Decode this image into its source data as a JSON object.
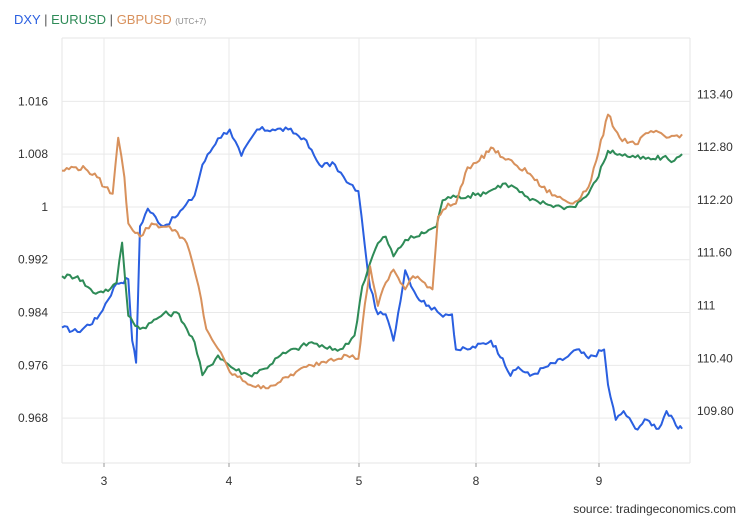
{
  "legend": {
    "dxy": "DXY",
    "eurusd": "EURUSD",
    "gbpusd": "GBPUSD",
    "separator": "|",
    "timezone": "(UTC+7)"
  },
  "source": "source: tradingeconomics.com",
  "chart_data": {
    "type": "line",
    "x_ticks": [
      "3",
      "4",
      "5",
      "8",
      "9"
    ],
    "left_axis": {
      "ticks": [
        "1.016",
        "1.008",
        "1",
        "0.992",
        "0.984",
        "0.976",
        "0.968"
      ],
      "range": [
        0.9612,
        1.0256
      ]
    },
    "right_axis": {
      "ticks": [
        "113.40",
        "112.80",
        "112.20",
        "111.60",
        "111",
        "110.40",
        "109.80"
      ],
      "range": [
        109.21,
        114.04
      ]
    },
    "grid": true,
    "legend_position": "top-left",
    "series": [
      {
        "name": "DXY",
        "axis": "right",
        "color": "#2a5fe0",
        "points": [
          [
            0.0,
            110.75
          ],
          [
            0.2,
            110.7
          ],
          [
            0.45,
            110.85
          ],
          [
            0.7,
            111.25
          ],
          [
            0.85,
            111.3
          ],
          [
            0.9,
            110.6
          ],
          [
            0.95,
            110.35
          ],
          [
            1.0,
            111.9
          ],
          [
            1.1,
            112.1
          ],
          [
            1.3,
            111.9
          ],
          [
            1.45,
            112.0
          ],
          [
            1.55,
            112.1
          ],
          [
            1.7,
            112.25
          ],
          [
            1.8,
            112.6
          ],
          [
            2.0,
            112.9
          ],
          [
            2.15,
            113.0
          ],
          [
            2.3,
            112.7
          ],
          [
            2.5,
            113.0
          ],
          [
            2.7,
            113.0
          ],
          [
            2.9,
            113.0
          ],
          [
            3.1,
            112.9
          ],
          [
            3.3,
            112.6
          ],
          [
            3.5,
            112.6
          ],
          [
            3.65,
            112.4
          ],
          [
            3.8,
            112.3
          ],
          [
            3.88,
            111.7
          ],
          [
            3.95,
            111.2
          ],
          [
            4.05,
            110.9
          ],
          [
            4.15,
            110.9
          ],
          [
            4.25,
            110.6
          ],
          [
            4.4,
            111.4
          ],
          [
            4.55,
            111.1
          ],
          [
            4.7,
            111.0
          ],
          [
            4.85,
            110.9
          ],
          [
            4.92,
            110.9
          ],
          [
            5.0,
            110.9
          ],
          [
            5.05,
            110.5
          ],
          [
            5.2,
            110.5
          ],
          [
            5.5,
            110.6
          ],
          [
            5.65,
            110.4
          ],
          [
            5.75,
            110.2
          ],
          [
            5.85,
            110.3
          ],
          [
            6.0,
            110.2
          ],
          [
            6.2,
            110.3
          ],
          [
            6.45,
            110.4
          ],
          [
            6.6,
            110.5
          ],
          [
            6.75,
            110.4
          ],
          [
            6.95,
            110.5
          ],
          [
            7.0,
            110.1
          ],
          [
            7.1,
            109.7
          ],
          [
            7.2,
            109.8
          ],
          [
            7.35,
            109.6
          ],
          [
            7.5,
            109.7
          ],
          [
            7.65,
            109.6
          ],
          [
            7.75,
            109.8
          ],
          [
            7.9,
            109.6
          ],
          [
            7.95,
            109.6
          ]
        ]
      },
      {
        "name": "EURUSD",
        "axis": "left",
        "color": "#2e8b57",
        "points": [
          [
            0.0,
            0.9895
          ],
          [
            0.2,
            0.9895
          ],
          [
            0.4,
            0.987
          ],
          [
            0.5,
            0.9872
          ],
          [
            0.62,
            0.9876
          ],
          [
            0.7,
            0.9885
          ],
          [
            0.77,
            0.9946
          ],
          [
            0.85,
            0.9835
          ],
          [
            1.0,
            0.9815
          ],
          [
            1.15,
            0.9825
          ],
          [
            1.3,
            0.9838
          ],
          [
            1.5,
            0.9838
          ],
          [
            1.6,
            0.9815
          ],
          [
            1.7,
            0.9795
          ],
          [
            1.8,
            0.9745
          ],
          [
            2.0,
            0.9775
          ],
          [
            2.2,
            0.9755
          ],
          [
            2.4,
            0.9745
          ],
          [
            2.6,
            0.9755
          ],
          [
            2.8,
            0.9775
          ],
          [
            3.0,
            0.9785
          ],
          [
            3.2,
            0.9795
          ],
          [
            3.4,
            0.9785
          ],
          [
            3.6,
            0.9785
          ],
          [
            3.75,
            0.9805
          ],
          [
            3.85,
            0.988
          ],
          [
            3.95,
            0.9915
          ],
          [
            4.05,
            0.9945
          ],
          [
            4.15,
            0.9955
          ],
          [
            4.25,
            0.9925
          ],
          [
            4.4,
            0.995
          ],
          [
            4.55,
            0.9955
          ],
          [
            4.7,
            0.9965
          ],
          [
            4.8,
            0.997
          ],
          [
            4.88,
            1.001
          ],
          [
            4.95,
            1.0015
          ],
          [
            5.05,
            1.0015
          ],
          [
            5.3,
            1.0018
          ],
          [
            5.5,
            1.0025
          ],
          [
            5.65,
            1.0035
          ],
          [
            5.8,
            1.003
          ],
          [
            6.0,
            1.001
          ],
          [
            6.2,
            1.0005
          ],
          [
            6.4,
            1.0
          ],
          [
            6.55,
            1.0
          ],
          [
            6.75,
            1.002
          ],
          [
            6.85,
            1.004
          ],
          [
            7.0,
            1.0085
          ],
          [
            7.15,
            1.008
          ],
          [
            7.35,
            1.0075
          ],
          [
            7.55,
            1.0072
          ],
          [
            7.7,
            1.0075
          ],
          [
            7.85,
            1.007
          ],
          [
            7.95,
            1.008
          ]
        ]
      },
      {
        "name": "GBPUSD",
        "axis": "left",
        "color": "#d8915c",
        "points": [
          [
            0.0,
            1.0055
          ],
          [
            0.15,
            1.006
          ],
          [
            0.3,
            1.0058
          ],
          [
            0.45,
            1.0045
          ],
          [
            0.55,
            1.003
          ],
          [
            0.65,
            1.002
          ],
          [
            0.72,
            1.0105
          ],
          [
            0.8,
            1.0045
          ],
          [
            0.85,
            0.9975
          ],
          [
            1.0,
            0.9955
          ],
          [
            1.15,
            0.9975
          ],
          [
            1.3,
            0.997
          ],
          [
            1.45,
            0.9965
          ],
          [
            1.6,
            0.9945
          ],
          [
            1.75,
            0.988
          ],
          [
            1.85,
            0.9815
          ],
          [
            2.0,
            0.9785
          ],
          [
            2.15,
            0.975
          ],
          [
            2.35,
            0.9735
          ],
          [
            2.55,
            0.9725
          ],
          [
            2.8,
            0.9735
          ],
          [
            3.0,
            0.975
          ],
          [
            3.2,
            0.976
          ],
          [
            3.45,
            0.977
          ],
          [
            3.65,
            0.9775
          ],
          [
            3.8,
            0.977
          ],
          [
            3.85,
            0.982
          ],
          [
            3.95,
            0.991
          ],
          [
            4.05,
            0.985
          ],
          [
            4.15,
            0.9885
          ],
          [
            4.25,
            0.9905
          ],
          [
            4.4,
            0.9875
          ],
          [
            4.5,
            0.9895
          ],
          [
            4.65,
            0.9885
          ],
          [
            4.75,
            0.9875
          ],
          [
            4.82,
            0.9985
          ],
          [
            4.95,
            1.0005
          ],
          [
            5.05,
            1.0005
          ],
          [
            5.2,
            1.006
          ],
          [
            5.35,
            1.007
          ],
          [
            5.5,
            1.009
          ],
          [
            5.65,
            1.0075
          ],
          [
            5.8,
            1.0065
          ],
          [
            6.0,
            1.005
          ],
          [
            6.15,
            1.003
          ],
          [
            6.35,
            1.0015
          ],
          [
            6.55,
            1.0005
          ],
          [
            6.75,
            1.003
          ],
          [
            6.85,
            1.007
          ],
          [
            7.0,
            1.014
          ],
          [
            7.15,
            1.0105
          ],
          [
            7.35,
            1.0095
          ],
          [
            7.55,
            1.0115
          ],
          [
            7.75,
            1.0105
          ],
          [
            7.95,
            1.011
          ]
        ]
      }
    ]
  }
}
